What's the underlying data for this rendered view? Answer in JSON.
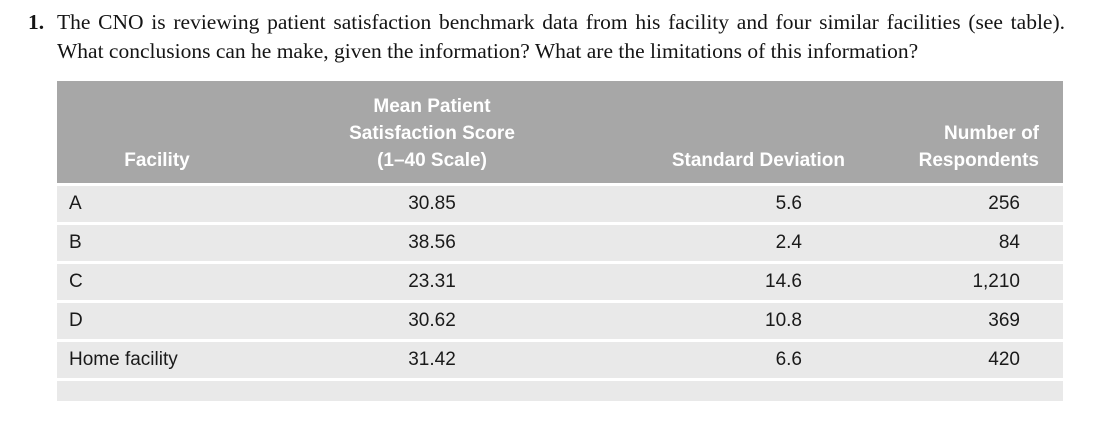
{
  "question": {
    "number": "1.",
    "text": "The CNO is reviewing patient satisfaction benchmark data from his facility and four similar facilities (see table). What conclusions can he make, given the information? What are the limitations of this information?"
  },
  "table": {
    "headers": {
      "facility": "Facility",
      "mean": [
        "Mean Patient",
        "Satisfaction Score",
        "(1–40 Scale)"
      ],
      "sd": "Standard Deviation",
      "respondents": [
        "Number of",
        "Respondents"
      ]
    },
    "rows": [
      {
        "facility": "A",
        "mean": "30.85",
        "sd": "5.6",
        "respondents": "256"
      },
      {
        "facility": "B",
        "mean": "38.56",
        "sd": "2.4",
        "respondents": "84"
      },
      {
        "facility": "C",
        "mean": "23.31",
        "sd": "14.6",
        "respondents": "1,210"
      },
      {
        "facility": "D",
        "mean": "30.62",
        "sd": "10.8",
        "respondents": "369"
      },
      {
        "facility": "Home facility",
        "mean": "31.42",
        "sd": "6.6",
        "respondents": "420"
      }
    ],
    "colors": {
      "header_bg": "#a7a7a7",
      "header_text": "#ffffff",
      "row_bg": "#e9e9e9"
    }
  }
}
